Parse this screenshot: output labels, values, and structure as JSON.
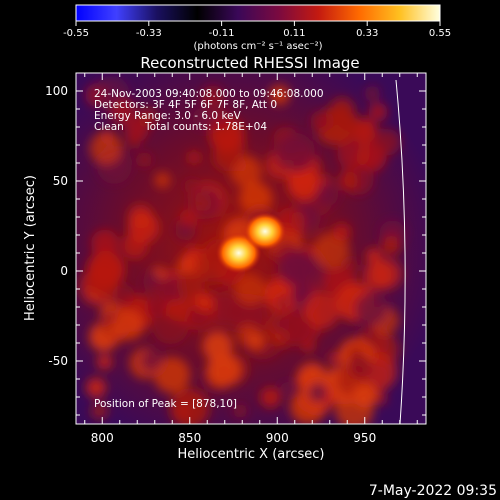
{
  "colorbar": {
    "ticks": [
      "-0.55",
      "-0.33",
      "-0.11",
      "0.11",
      "0.33",
      "0.55"
    ],
    "units": "(photons cm⁻² s⁻¹ asec⁻²)",
    "colors": [
      "#0000ff",
      "#4040ff",
      "#1a1060",
      "#000000",
      "#3a0858",
      "#7a0a40",
      "#c41a10",
      "#ff6a00",
      "#ffc020",
      "#ffffe0"
    ]
  },
  "title": "Reconstructed RHESSI Image",
  "info": {
    "line1": "24-Nov-2003 09:40:08.000 to 09:46:08.000",
    "line2": "Detectors: 3F 4F 5F 6F 7F 8F, Att 0",
    "line3": "Energy Range: 3.0 - 6.0 keV",
    "line4_label": "Clean",
    "line4_counts": "Total counts: 1.78E+04",
    "peak": "Position of Peak = [878,10]"
  },
  "timestamp": "7-May-2022 09:35",
  "chart_data": {
    "type": "heatmap",
    "title": "Reconstructed RHESSI Image",
    "xlabel": "Heliocentric X (arcsec)",
    "ylabel": "Heliocentric Y (arcsec)",
    "xlim": [
      785,
      985
    ],
    "ylim": [
      -85,
      110
    ],
    "xticks": [
      800,
      850,
      900,
      950
    ],
    "yticks": [
      -50,
      0,
      50,
      100
    ],
    "colorbar_range": [
      -0.55,
      0.55
    ],
    "peak_position": [
      878,
      10
    ],
    "sources": [
      {
        "x": 878,
        "y": 10,
        "intensity": 0.55
      },
      {
        "x": 893,
        "y": 22,
        "intensity": 0.45
      }
    ],
    "solar_limb": "right"
  }
}
